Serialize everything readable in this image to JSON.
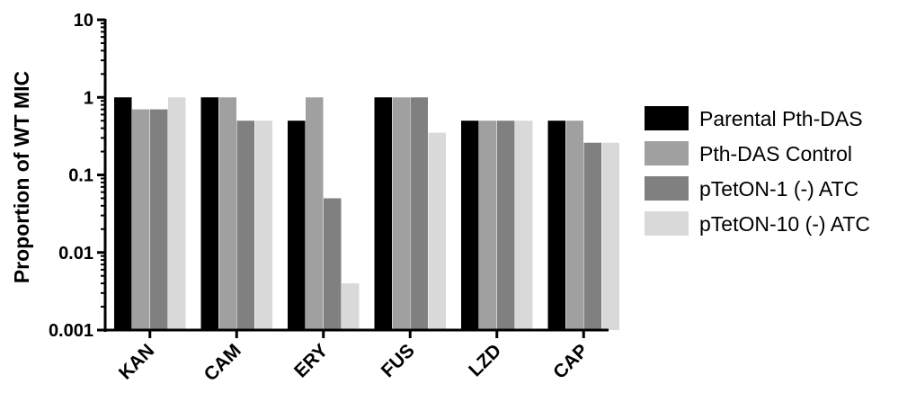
{
  "chart_data": {
    "type": "bar",
    "ylabel": "Proportion of WT MIC",
    "xlabel": "",
    "yscale": "log",
    "ylim": [
      0.001,
      10
    ],
    "yticks": [
      "10",
      "1",
      "0.1",
      "0.01",
      "0.001"
    ],
    "yticks_values": [
      10,
      1,
      0.1,
      0.01,
      0.001
    ],
    "categories": [
      "KAN",
      "CAM",
      "ERY",
      "FUS",
      "LZD",
      "CAP"
    ],
    "series": [
      {
        "name": "Parental Pth-DAS",
        "color": "#000000",
        "values": [
          1,
          1,
          0.5,
          1,
          0.5,
          0.5
        ]
      },
      {
        "name": "Pth-DAS Control",
        "color": "#a0a0a0",
        "values": [
          0.7,
          1,
          1,
          1,
          0.5,
          0.5
        ]
      },
      {
        "name": "pTetON-1 (-) ATC",
        "color": "#808080",
        "values": [
          0.7,
          0.5,
          0.05,
          1,
          0.5,
          0.26
        ]
      },
      {
        "name": "pTetON-10 (-) ATC",
        "color": "#d9d9d9",
        "values": [
          1,
          0.5,
          0.004,
          0.35,
          0.5,
          0.26
        ]
      }
    ],
    "legend_position": "right",
    "grid": false
  }
}
